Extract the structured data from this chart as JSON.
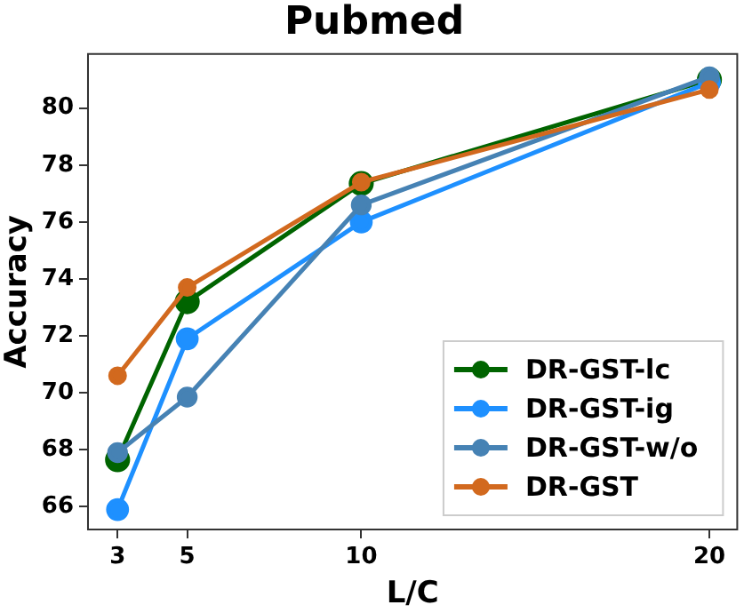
{
  "chart_data": {
    "type": "line",
    "title": "Pubmed",
    "xlabel": "L/C",
    "ylabel": "Accuracy",
    "x": [
      3,
      5,
      10,
      20
    ],
    "xlim": [
      2.15,
      20.8
    ],
    "xticks": [
      3,
      5,
      10,
      20
    ],
    "ylim": [
      65.2,
      81.9
    ],
    "yticks": [
      66,
      68,
      70,
      72,
      74,
      76,
      78,
      80
    ],
    "grid": false,
    "legend": "bottom right",
    "marker": "circle",
    "line_style": "solid",
    "series": [
      {
        "name": "DR-GST-lc",
        "color": "#006400",
        "values": [
          67.65,
          73.2,
          77.35,
          81.0
        ]
      },
      {
        "name": "DR-GST-ig",
        "color": "#1e90ff",
        "values": [
          65.9,
          71.9,
          76.0,
          80.9
        ]
      },
      {
        "name": "DR-GST-w/o",
        "color": "#4682b4",
        "values": [
          67.9,
          69.85,
          76.6,
          81.1
        ]
      },
      {
        "name": "DR-GST",
        "color": "#d2691e",
        "values": [
          70.6,
          73.7,
          77.4,
          80.65
        ]
      }
    ]
  }
}
